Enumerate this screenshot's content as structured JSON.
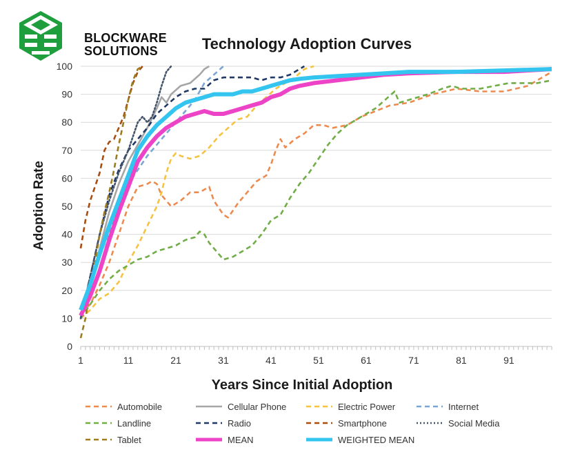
{
  "brand": {
    "line1": "BLOCKWARE",
    "line2": "SOLUTIONS",
    "logo_icon": "blockware-cube-logo-icon",
    "logo_color": "#1f9e3d"
  },
  "chart_data": {
    "type": "line",
    "title": "Technology Adoption Curves",
    "xlabel": "Years Since Initial Adoption",
    "ylabel": "Adoption Rate",
    "xlim": [
      1,
      100
    ],
    "ylim": [
      0,
      100
    ],
    "xticks": [
      1,
      11,
      21,
      31,
      41,
      51,
      61,
      71,
      81,
      91
    ],
    "yticks": [
      0,
      10,
      20,
      30,
      40,
      50,
      60,
      70,
      80,
      90,
      100
    ],
    "grid": "horizontal",
    "legend_position": "bottom",
    "series": [
      {
        "name": "Automobile",
        "color": "#ed8a4f",
        "dash": "dashed",
        "points": [
          [
            1,
            12
          ],
          [
            3,
            15
          ],
          [
            5,
            22
          ],
          [
            7,
            30
          ],
          [
            9,
            40
          ],
          [
            11,
            50
          ],
          [
            13,
            57
          ],
          [
            15,
            58
          ],
          [
            16,
            59
          ],
          [
            17,
            58
          ],
          [
            18,
            54
          ],
          [
            20,
            50
          ],
          [
            22,
            52
          ],
          [
            24,
            55
          ],
          [
            26,
            55
          ],
          [
            28,
            57
          ],
          [
            29,
            52
          ],
          [
            31,
            47
          ],
          [
            32,
            46
          ],
          [
            34,
            51
          ],
          [
            36,
            55
          ],
          [
            38,
            59
          ],
          [
            40,
            61
          ],
          [
            41,
            65
          ],
          [
            42,
            70
          ],
          [
            43,
            74
          ],
          [
            44,
            71
          ],
          [
            46,
            74
          ],
          [
            48,
            76
          ],
          [
            50,
            79
          ],
          [
            52,
            79
          ],
          [
            54,
            78
          ],
          [
            57,
            79
          ],
          [
            60,
            82
          ],
          [
            63,
            84
          ],
          [
            66,
            86
          ],
          [
            70,
            87
          ],
          [
            75,
            90
          ],
          [
            80,
            92
          ],
          [
            85,
            91
          ],
          [
            90,
            91
          ],
          [
            95,
            93
          ],
          [
            100,
            98
          ]
        ]
      },
      {
        "name": "Cellular Phone",
        "color": "#a6a6a6",
        "dash": "solid",
        "points": [
          [
            1,
            10
          ],
          [
            3,
            22
          ],
          [
            5,
            35
          ],
          [
            7,
            48
          ],
          [
            9,
            58
          ],
          [
            11,
            66
          ],
          [
            13,
            72
          ],
          [
            15,
            78
          ],
          [
            17,
            85
          ],
          [
            18,
            89
          ],
          [
            19,
            87
          ],
          [
            20,
            90
          ],
          [
            22,
            93
          ],
          [
            24,
            94
          ],
          [
            26,
            97
          ],
          [
            27,
            99
          ],
          [
            28,
            100
          ]
        ]
      },
      {
        "name": "Electric Power",
        "color": "#f5c242",
        "dash": "dashed",
        "points": [
          [
            1,
            10
          ],
          [
            3,
            13
          ],
          [
            5,
            17
          ],
          [
            7,
            19
          ],
          [
            9,
            23
          ],
          [
            11,
            30
          ],
          [
            13,
            36
          ],
          [
            15,
            43
          ],
          [
            17,
            50
          ],
          [
            18,
            55
          ],
          [
            19,
            62
          ],
          [
            20,
            67
          ],
          [
            21,
            69
          ],
          [
            22,
            68
          ],
          [
            24,
            67
          ],
          [
            26,
            68
          ],
          [
            28,
            71
          ],
          [
            30,
            75
          ],
          [
            32,
            78
          ],
          [
            34,
            81
          ],
          [
            36,
            82
          ],
          [
            38,
            86
          ],
          [
            40,
            89
          ],
          [
            42,
            92
          ],
          [
            44,
            94
          ],
          [
            46,
            96
          ],
          [
            48,
            99
          ],
          [
            50,
            100
          ]
        ]
      },
      {
        "name": "Internet",
        "color": "#7ba6d4",
        "dash": "dashed",
        "points": [
          [
            1,
            10
          ],
          [
            3,
            18
          ],
          [
            5,
            28
          ],
          [
            7,
            40
          ],
          [
            9,
            50
          ],
          [
            11,
            58
          ],
          [
            13,
            63
          ],
          [
            15,
            68
          ],
          [
            17,
            72
          ],
          [
            19,
            76
          ],
          [
            21,
            80
          ],
          [
            23,
            84
          ],
          [
            25,
            88
          ],
          [
            27,
            94
          ],
          [
            29,
            97
          ],
          [
            31,
            100
          ]
        ]
      },
      {
        "name": "Landline",
        "color": "#70ad47",
        "dash": "dashed",
        "points": [
          [
            1,
            10
          ],
          [
            3,
            15
          ],
          [
            5,
            20
          ],
          [
            7,
            24
          ],
          [
            9,
            27
          ],
          [
            11,
            29
          ],
          [
            13,
            31
          ],
          [
            15,
            32
          ],
          [
            17,
            34
          ],
          [
            19,
            35
          ],
          [
            21,
            36
          ],
          [
            23,
            38
          ],
          [
            25,
            39
          ],
          [
            26,
            41
          ],
          [
            27,
            40
          ],
          [
            28,
            37
          ],
          [
            30,
            33
          ],
          [
            31,
            31
          ],
          [
            33,
            32
          ],
          [
            35,
            34
          ],
          [
            37,
            36
          ],
          [
            39,
            40
          ],
          [
            41,
            45
          ],
          [
            43,
            47
          ],
          [
            45,
            53
          ],
          [
            47,
            58
          ],
          [
            49,
            62
          ],
          [
            51,
            67
          ],
          [
            53,
            72
          ],
          [
            55,
            76
          ],
          [
            57,
            79
          ],
          [
            59,
            81
          ],
          [
            61,
            83
          ],
          [
            63,
            85
          ],
          [
            65,
            88
          ],
          [
            67,
            91
          ],
          [
            68,
            87
          ],
          [
            70,
            88
          ],
          [
            72,
            89
          ],
          [
            74,
            90
          ],
          [
            77,
            92
          ],
          [
            79,
            93
          ],
          [
            81,
            92
          ],
          [
            83,
            92
          ],
          [
            85,
            92
          ],
          [
            88,
            93
          ],
          [
            91,
            94
          ],
          [
            94,
            94
          ],
          [
            97,
            94
          ],
          [
            100,
            95
          ]
        ]
      },
      {
        "name": "Radio",
        "color": "#1f3864",
        "dash": "dashed",
        "points": [
          [
            1,
            10
          ],
          [
            3,
            25
          ],
          [
            5,
            40
          ],
          [
            7,
            54
          ],
          [
            9,
            63
          ],
          [
            11,
            70
          ],
          [
            13,
            74
          ],
          [
            15,
            78
          ],
          [
            17,
            83
          ],
          [
            19,
            86
          ],
          [
            21,
            89
          ],
          [
            23,
            91
          ],
          [
            25,
            92
          ],
          [
            27,
            92
          ],
          [
            29,
            95
          ],
          [
            31,
            96
          ],
          [
            33,
            96
          ],
          [
            35,
            96
          ],
          [
            37,
            96
          ],
          [
            39,
            95
          ],
          [
            41,
            96
          ],
          [
            43,
            96
          ],
          [
            45,
            97
          ],
          [
            47,
            99
          ],
          [
            48,
            100
          ]
        ]
      },
      {
        "name": "Smartphone",
        "color": "#a84d10",
        "dash": "dashed",
        "points": [
          [
            1,
            35
          ],
          [
            2,
            45
          ],
          [
            3,
            52
          ],
          [
            4,
            57
          ],
          [
            5,
            62
          ],
          [
            6,
            70
          ],
          [
            7,
            73
          ],
          [
            8,
            74
          ],
          [
            9,
            78
          ],
          [
            10,
            82
          ],
          [
            11,
            88
          ],
          [
            12,
            94
          ],
          [
            13,
            98
          ],
          [
            14,
            100
          ]
        ]
      },
      {
        "name": "Social Media",
        "color": "#44546a",
        "dash": "dotted",
        "points": [
          [
            1,
            10
          ],
          [
            3,
            25
          ],
          [
            5,
            40
          ],
          [
            7,
            52
          ],
          [
            9,
            62
          ],
          [
            11,
            70
          ],
          [
            12,
            75
          ],
          [
            13,
            80
          ],
          [
            14,
            82
          ],
          [
            15,
            80
          ],
          [
            16,
            82
          ],
          [
            17,
            87
          ],
          [
            18,
            93
          ],
          [
            19,
            98
          ],
          [
            20,
            100
          ]
        ]
      },
      {
        "name": "Tablet",
        "color": "#9c7c1e",
        "dash": "dashed",
        "points": [
          [
            1,
            3
          ],
          [
            2,
            10
          ],
          [
            3,
            20
          ],
          [
            4,
            30
          ],
          [
            5,
            40
          ],
          [
            6,
            48
          ],
          [
            7,
            55
          ],
          [
            8,
            63
          ],
          [
            9,
            72
          ],
          [
            10,
            80
          ],
          [
            11,
            88
          ],
          [
            12,
            95
          ],
          [
            13,
            99
          ],
          [
            14,
            100
          ]
        ]
      },
      {
        "name": "MEAN",
        "color": "#ec43c7",
        "dash": "solid",
        "width": 6,
        "points": [
          [
            1,
            11
          ],
          [
            3,
            18
          ],
          [
            5,
            27
          ],
          [
            7,
            38
          ],
          [
            9,
            48
          ],
          [
            11,
            57
          ],
          [
            13,
            66
          ],
          [
            15,
            71
          ],
          [
            17,
            75
          ],
          [
            19,
            78
          ],
          [
            21,
            80
          ],
          [
            23,
            82
          ],
          [
            25,
            83
          ],
          [
            27,
            84
          ],
          [
            29,
            83
          ],
          [
            31,
            83
          ],
          [
            33,
            84
          ],
          [
            35,
            85
          ],
          [
            37,
            86
          ],
          [
            39,
            87
          ],
          [
            41,
            89
          ],
          [
            43,
            90
          ],
          [
            45,
            92
          ],
          [
            47,
            93
          ],
          [
            50,
            94
          ],
          [
            55,
            95
          ],
          [
            60,
            96
          ],
          [
            65,
            97
          ],
          [
            70,
            97.5
          ],
          [
            80,
            98
          ],
          [
            90,
            98
          ],
          [
            100,
            99
          ]
        ]
      },
      {
        "name": "WEIGHTED MEAN",
        "color": "#33c5f0",
        "dash": "solid",
        "width": 6,
        "points": [
          [
            1,
            13
          ],
          [
            3,
            22
          ],
          [
            5,
            33
          ],
          [
            7,
            43
          ],
          [
            9,
            52
          ],
          [
            11,
            61
          ],
          [
            13,
            70
          ],
          [
            15,
            75
          ],
          [
            17,
            79
          ],
          [
            19,
            82
          ],
          [
            21,
            85
          ],
          [
            23,
            87
          ],
          [
            25,
            88
          ],
          [
            27,
            89
          ],
          [
            29,
            90
          ],
          [
            31,
            90
          ],
          [
            33,
            90
          ],
          [
            35,
            91
          ],
          [
            37,
            91
          ],
          [
            39,
            92
          ],
          [
            41,
            93
          ],
          [
            43,
            94
          ],
          [
            45,
            95
          ],
          [
            47,
            95.5
          ],
          [
            50,
            96
          ],
          [
            55,
            96.5
          ],
          [
            60,
            97
          ],
          [
            65,
            97.5
          ],
          [
            70,
            98
          ],
          [
            80,
            98
          ],
          [
            90,
            98.5
          ],
          [
            100,
            99
          ]
        ]
      }
    ]
  }
}
